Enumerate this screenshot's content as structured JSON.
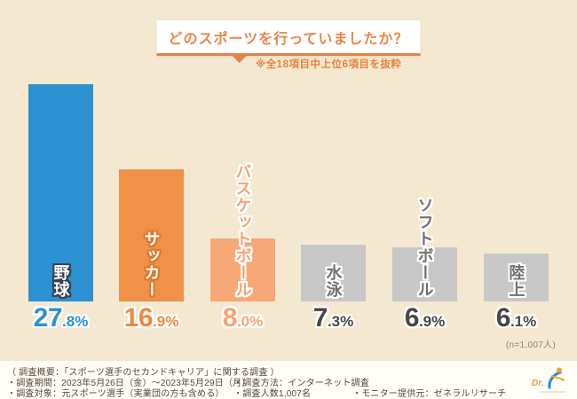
{
  "header": {
    "title": "どのスポーツを行っていましたか？",
    "note": "※全18項目中上位6項目を抜粋"
  },
  "chart_data": {
    "type": "bar",
    "title": "どのスポーツを行っていましたか？",
    "subtitle_note": "※全18項目中上位6項目を抜粋",
    "sample_size_note": "(n=1,007人)",
    "unit": "%",
    "ylim": [
      0,
      28
    ],
    "grid": false,
    "legend": "none",
    "categories": [
      "野球",
      "サッカー",
      "バスケットボール",
      "水泳",
      "ソフトボール",
      "陸上"
    ],
    "values": [
      27.8,
      16.9,
      8.0,
      7.3,
      6.9,
      6.1
    ],
    "items": [
      {
        "label": "野球",
        "value": 27.8,
        "display": "27.8%",
        "bar_color": "#2b91d0",
        "label_color": "#ffffff",
        "label_outline": "#38404e",
        "value_color": "#2b91d0"
      },
      {
        "label": "サッカー",
        "value": 16.9,
        "display": "16.9%",
        "bar_color": "#f0914a",
        "label_color": "#ffffff",
        "label_outline": "#dd7a2e",
        "value_color": "#ee8a3e"
      },
      {
        "label": "バスケットボール",
        "value": 8.0,
        "display": "8.0%",
        "bar_color": "#f7a877",
        "label_color": "#f5a470",
        "label_outline": "#ffffff",
        "value_color": "#f5a470"
      },
      {
        "label": "水泳",
        "value": 7.3,
        "display": "7.3%",
        "bar_color": "#c7c7c7",
        "label_color": "#707070",
        "label_outline": "#ffffff",
        "value_color": "#464646"
      },
      {
        "label": "ソフトボール",
        "value": 6.9,
        "display": "6.9%",
        "bar_color": "#c7c7c7",
        "label_color": "#707070",
        "label_outline": "#ffffff",
        "value_color": "#464646"
      },
      {
        "label": "陸上",
        "value": 6.1,
        "display": "6.1%",
        "bar_color": "#c7c7c7",
        "label_color": "#707070",
        "label_outline": "#ffffff",
        "value_color": "#464646"
      }
    ]
  },
  "footer": {
    "overview": "（ 調査概要：「スポーツ選手のセカンドキャリア」に関する調査 ）",
    "period": "・調査期間：2023年5月26日（金）～2023年5月29日（月）",
    "target": "・調査対象：元スポーツ選手（実業団の方も含める）",
    "method": "・調査方法：インターネット調査",
    "count": "・調査人数1,007名",
    "provider": "・モニター提供元：ゼネラルリサーチ",
    "logo_text": "Dr."
  }
}
